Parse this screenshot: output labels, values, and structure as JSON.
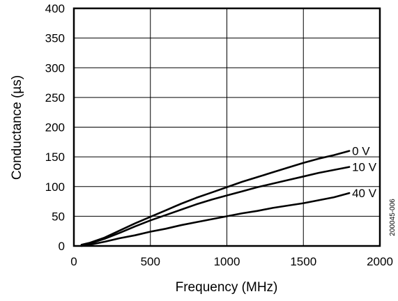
{
  "chart_data": {
    "type": "line",
    "xlabel": "Frequency (MHz)",
    "ylabel": "Conductance (µs)",
    "xlim": [
      0,
      2000
    ],
    "ylim": [
      0,
      400
    ],
    "xticks": [
      0,
      500,
      1000,
      1500,
      2000
    ],
    "yticks": [
      0,
      50,
      100,
      150,
      200,
      250,
      300,
      350,
      400
    ],
    "grid": true,
    "series": [
      {
        "name": "0 V",
        "x": [
          50,
          100,
          200,
          300,
          400,
          500,
          600,
          700,
          800,
          900,
          1000,
          1100,
          1200,
          1300,
          1400,
          1500,
          1600,
          1700,
          1800
        ],
        "values": [
          2,
          5,
          14,
          26,
          38,
          49,
          60,
          71,
          81,
          90,
          99,
          108,
          116,
          124,
          132,
          140,
          147,
          153,
          160
        ]
      },
      {
        "name": "10 V",
        "x": [
          50,
          100,
          200,
          300,
          400,
          500,
          600,
          700,
          800,
          900,
          1000,
          1100,
          1200,
          1300,
          1400,
          1500,
          1600,
          1700,
          1800
        ],
        "values": [
          1,
          4,
          12,
          22,
          33,
          43,
          52,
          61,
          70,
          78,
          85,
          92,
          99,
          105,
          111,
          117,
          123,
          128,
          133
        ]
      },
      {
        "name": "40 V",
        "x": [
          50,
          100,
          200,
          300,
          400,
          500,
          600,
          700,
          800,
          900,
          1000,
          1100,
          1200,
          1300,
          1400,
          1500,
          1600,
          1700,
          1800
        ],
        "values": [
          0,
          2,
          7,
          13,
          18,
          24,
          29,
          35,
          40,
          45,
          50,
          55,
          59,
          64,
          68,
          72,
          77,
          82,
          89
        ]
      }
    ],
    "figure_code": "200045-006"
  }
}
